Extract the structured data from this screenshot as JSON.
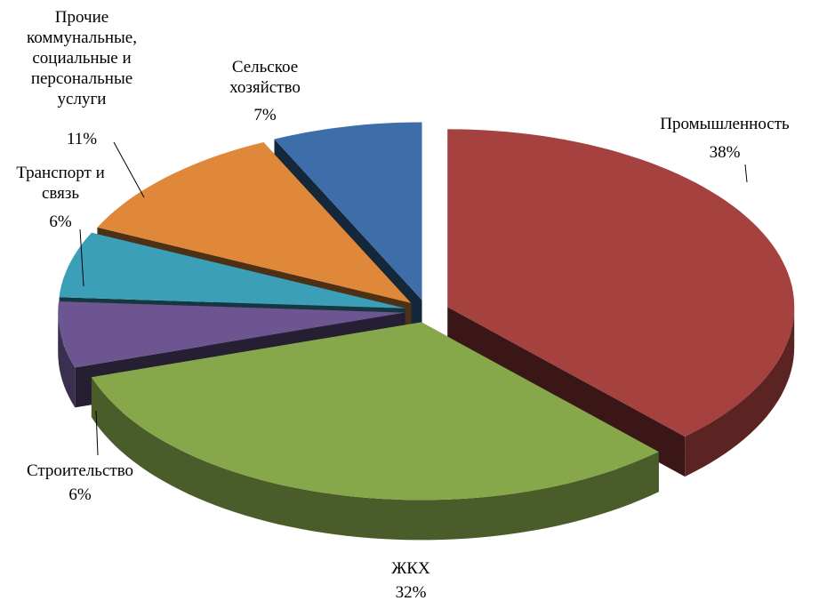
{
  "chart_data": {
    "type": "pie3d",
    "categories": [
      "Промышленность",
      "ЖКХ",
      "Строительство",
      "Транспорт и связь",
      "Прочие коммунальные, социальные и персональные услуги",
      "Сельское хозяйство"
    ],
    "values": [
      38,
      32,
      6,
      6,
      11,
      7
    ],
    "value_labels": [
      "38%",
      "32%",
      "6%",
      "6%",
      "11%",
      "7%"
    ],
    "colors": [
      "#a5423f",
      "#86a84a",
      "#6c5590",
      "#3c9fb8",
      "#e0883a",
      "#3d6ea9"
    ]
  }
}
